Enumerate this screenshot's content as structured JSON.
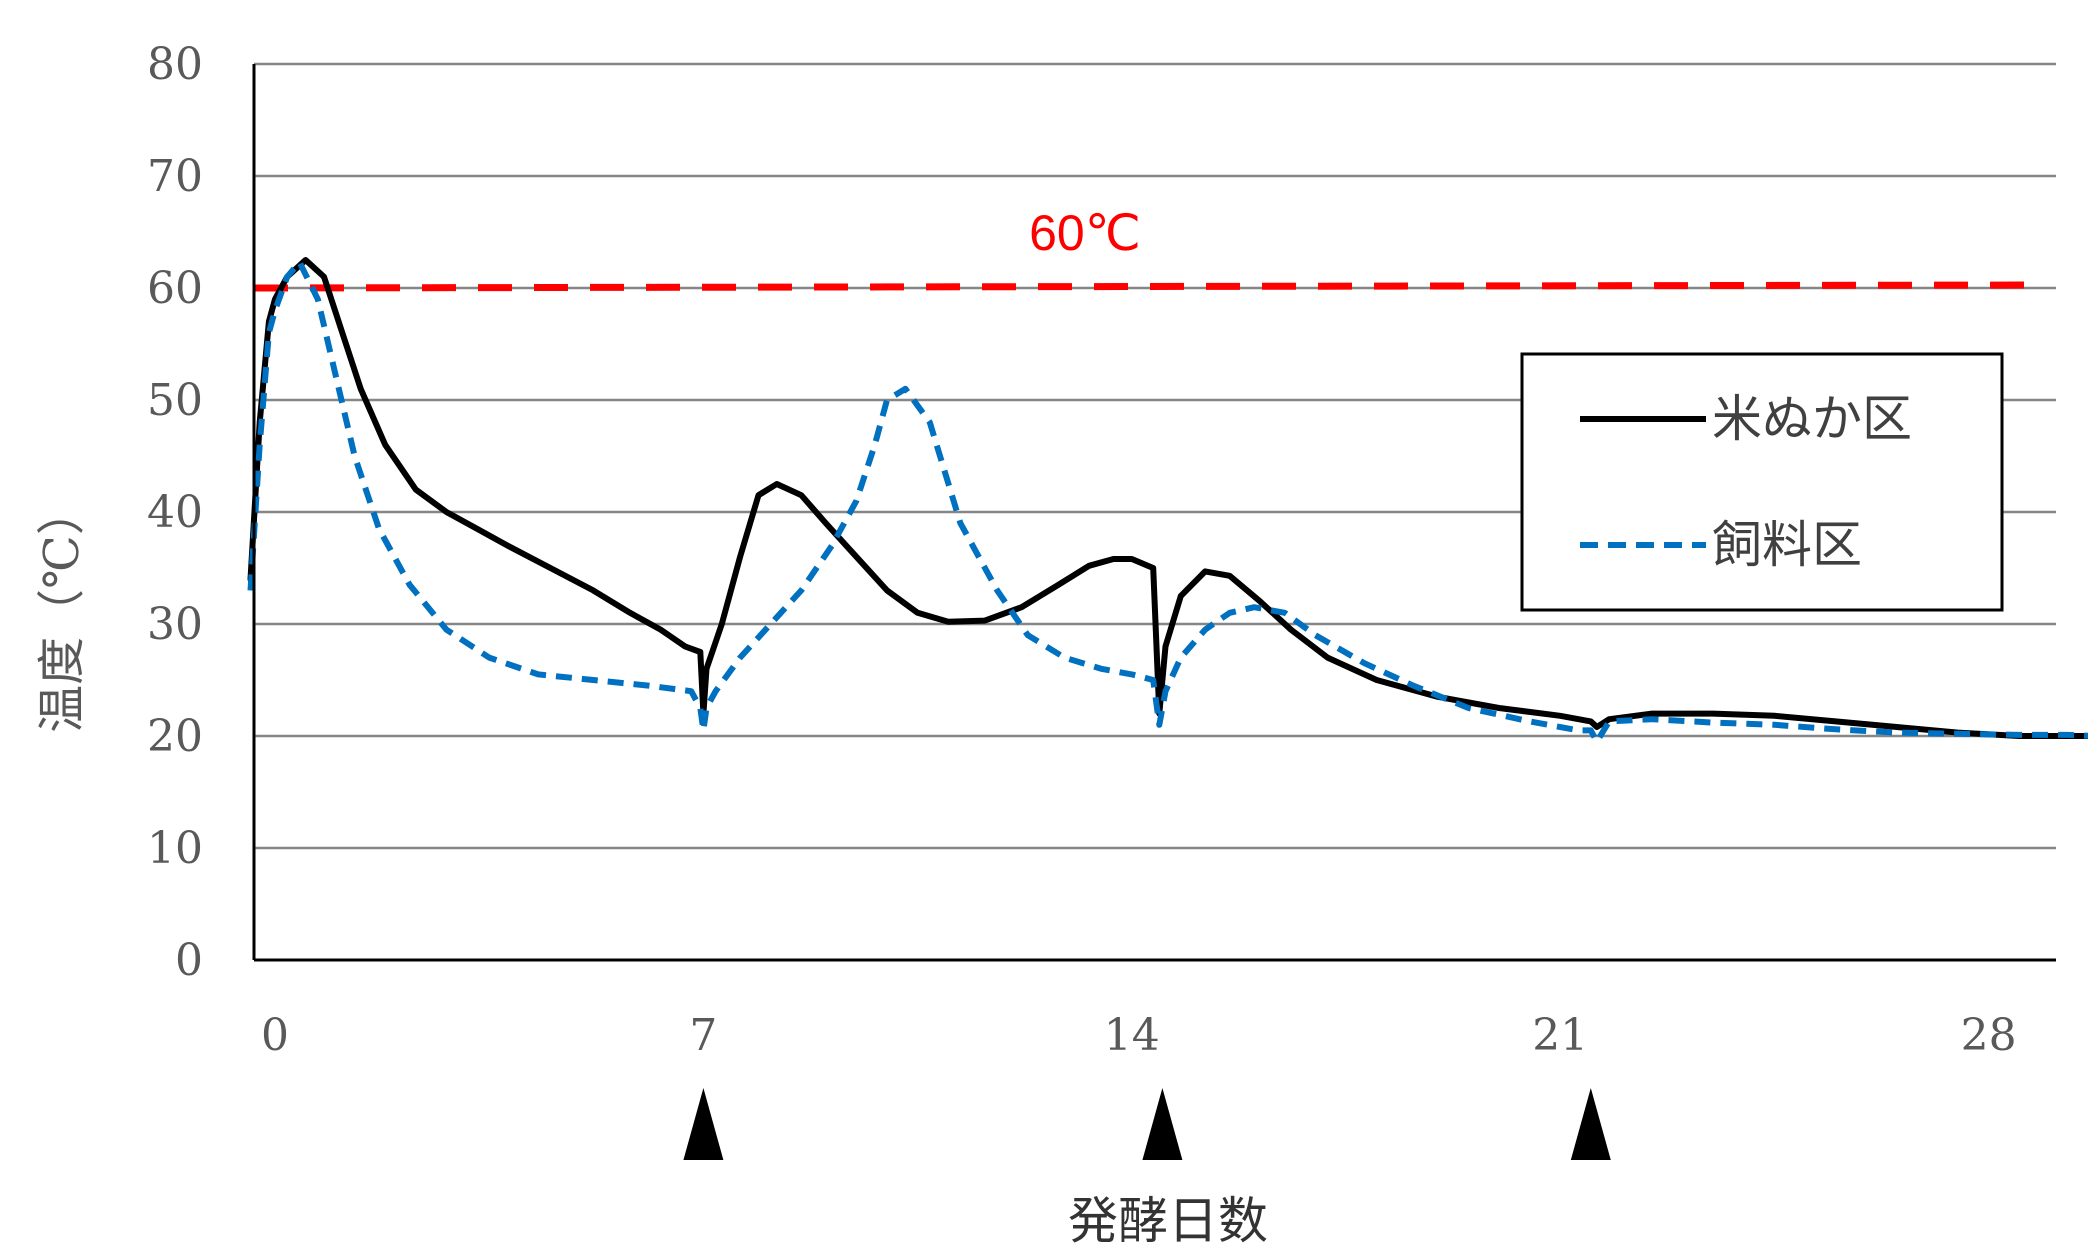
{
  "chart_data": {
    "type": "line",
    "title": "",
    "xlabel": "発酵日数",
    "ylabel": "温度（℃）",
    "xlim": [
      -0.5,
      30
    ],
    "ylim": [
      0,
      80
    ],
    "x_ticks": [
      0,
      7,
      14,
      21,
      28
    ],
    "y_ticks": [
      0,
      10,
      20,
      30,
      40,
      50,
      60,
      70,
      80
    ],
    "grid": "horizontal",
    "legend_position": "right",
    "annotation": {
      "text": "60℃",
      "color": "#ff0000",
      "y": 60
    },
    "threshold_line": {
      "y": 60,
      "color": "#ff0000",
      "style": "dashed"
    },
    "markers": {
      "symbol": "triangle-up",
      "x": [
        7,
        14.5,
        21.5
      ]
    },
    "series": [
      {
        "name": "米ぬか区",
        "color": "#000000",
        "style": "solid",
        "x": [
          -0.4,
          -0.25,
          -0.1,
          0.0,
          0.2,
          0.5,
          0.8,
          1.1,
          1.4,
          1.8,
          2.3,
          2.8,
          3.3,
          3.8,
          4.5,
          5.2,
          5.8,
          6.3,
          6.7,
          6.95,
          7.0,
          7.05,
          7.3,
          7.6,
          7.9,
          8.2,
          8.6,
          9.0,
          9.5,
          10.0,
          10.5,
          11.0,
          11.6,
          12.2,
          12.8,
          13.3,
          13.7,
          14.0,
          14.35,
          14.45,
          14.55,
          14.8,
          15.2,
          15.6,
          16.1,
          16.6,
          17.2,
          18.0,
          19.0,
          20.0,
          21.0,
          21.5,
          21.6,
          21.8,
          22.5,
          23.5,
          24.5,
          25.5,
          26.5,
          27.5,
          28.5,
          29.5,
          30.0
        ],
        "values": [
          34,
          48,
          57,
          59,
          61,
          62.5,
          61,
          56,
          51,
          46,
          42,
          40,
          38.5,
          37,
          35,
          33,
          31,
          29.5,
          28,
          27.5,
          22,
          26,
          30,
          36,
          41.5,
          42.5,
          41.5,
          39,
          36,
          33,
          31,
          30.2,
          30.3,
          31.5,
          33.5,
          35.2,
          35.8,
          35.8,
          35,
          22,
          28,
          32.5,
          34.7,
          34.3,
          32,
          29.5,
          27,
          25,
          23.5,
          22.5,
          21.8,
          21.3,
          20.8,
          21.5,
          22,
          22,
          21.8,
          21.3,
          20.8,
          20.3,
          20,
          20,
          20
        ]
      },
      {
        "name": "飼料区",
        "color": "#0070c0",
        "style": "dashed",
        "x": [
          -0.4,
          -0.25,
          -0.1,
          0.0,
          0.2,
          0.4,
          0.7,
          1.0,
          1.3,
          1.7,
          2.2,
          2.8,
          3.5,
          4.3,
          5.2,
          6.1,
          6.8,
          6.95,
          7.0,
          7.05,
          7.2,
          7.6,
          8.1,
          8.6,
          9.1,
          9.5,
          9.8,
          10.0,
          10.3,
          10.7,
          11.2,
          11.8,
          12.3,
          12.9,
          13.5,
          14.0,
          14.35,
          14.45,
          14.55,
          14.8,
          15.2,
          15.6,
          16.0,
          16.5,
          17.0,
          17.8,
          18.6,
          19.5,
          20.5,
          21.3,
          21.5,
          21.6,
          21.8,
          22.5,
          23.5,
          24.5,
          25.5,
          26.5,
          27.5,
          28.5,
          29.3,
          29.7,
          29.85,
          30.0
        ],
        "values": [
          33,
          46,
          56,
          58,
          61,
          62.3,
          59,
          52,
          45,
          38.5,
          33.5,
          29.5,
          27,
          25.5,
          25,
          24.5,
          24,
          22.5,
          20.5,
          22.5,
          24,
          27,
          30,
          33,
          37,
          41,
          46,
          50,
          51,
          48,
          39,
          33,
          29,
          27,
          26,
          25.5,
          25,
          21,
          24,
          27,
          29.5,
          31,
          31.5,
          31,
          29,
          26.5,
          24.5,
          22.5,
          21.3,
          20.5,
          20.5,
          19.5,
          21.3,
          21.5,
          21.2,
          21,
          20.6,
          20.3,
          20.2,
          20.1,
          20.1,
          20,
          19,
          19.5
        ]
      }
    ]
  }
}
